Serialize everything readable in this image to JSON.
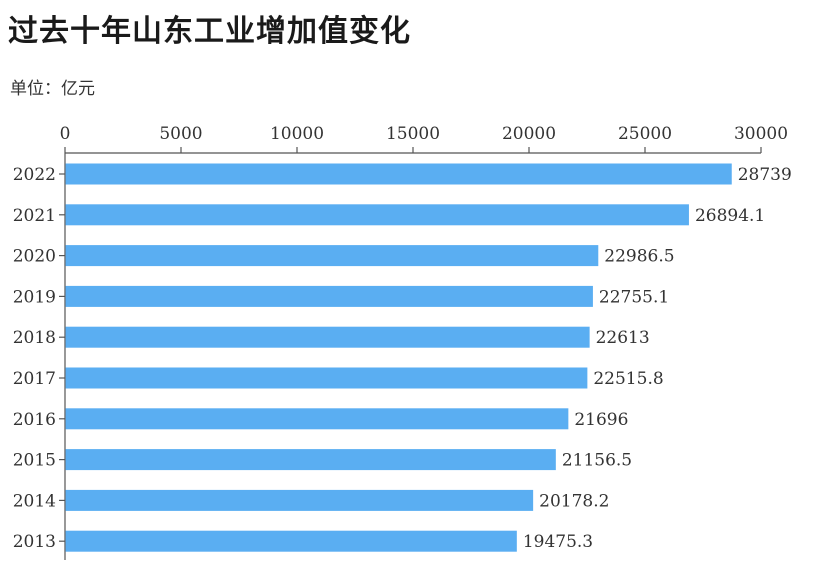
{
  "title": "过去十年山东工业增加值变化",
  "unit_label": "单位：亿元",
  "colors": {
    "bar": "#5aaef2",
    "axis": "#555555",
    "text": "#333333"
  },
  "chart_data": {
    "type": "bar",
    "orientation": "horizontal",
    "categories": [
      "2022",
      "2021",
      "2020",
      "2019",
      "2018",
      "2017",
      "2016",
      "2015",
      "2014",
      "2013"
    ],
    "values": [
      28739,
      26894.1,
      22986.5,
      22755.1,
      22613,
      22515.8,
      21696,
      21156.5,
      20178.2,
      19475.3
    ],
    "value_labels": [
      "28739",
      "26894.1",
      "22986.5",
      "22755.1",
      "22613",
      "22515.8",
      "21696",
      "21156.5",
      "20178.2",
      "19475.3"
    ],
    "xlim": [
      0,
      30000
    ],
    "xticks": [
      0,
      5000,
      10000,
      15000,
      20000,
      25000,
      30000
    ],
    "xtick_labels": [
      "0",
      "5000",
      "10000",
      "15000",
      "20000",
      "25000",
      "30000"
    ],
    "x_axis_position": "top",
    "grid": false,
    "legend": false
  }
}
